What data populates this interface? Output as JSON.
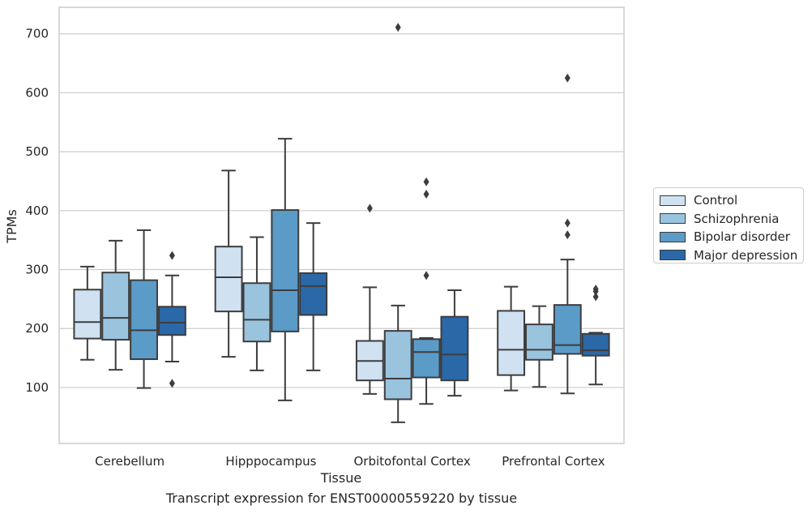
{
  "caption": "Transcript expression for ENST00000559220 by tissue",
  "chart_data": {
    "type": "boxplot",
    "xlabel": "Tissue",
    "ylabel": "TPMs",
    "ylim": [
      5,
      745
    ],
    "yticks": [
      100,
      200,
      300,
      400,
      500,
      600,
      700
    ],
    "grid": "horizontal",
    "legend_position": "right",
    "categories": [
      "Cerebellum",
      "Hipppocampus",
      "Orbitofontal Cortex",
      "Prefrontal Cortex"
    ],
    "series": [
      {
        "name": "Control",
        "color": "#d0e1f2",
        "boxes": [
          {
            "whisker_low": 147,
            "q1": 183,
            "median": 211,
            "q3": 266,
            "whisker_high": 305,
            "outliers": []
          },
          {
            "whisker_low": 152,
            "q1": 229,
            "median": 287,
            "q3": 339,
            "whisker_high": 468,
            "outliers": []
          },
          {
            "whisker_low": 89,
            "q1": 112,
            "median": 145,
            "q3": 179,
            "whisker_high": 270,
            "outliers": [
              404
            ]
          },
          {
            "whisker_low": 95,
            "q1": 121,
            "median": 164,
            "q3": 230,
            "whisker_high": 271,
            "outliers": []
          }
        ]
      },
      {
        "name": "Schizophrenia",
        "color": "#9ac3de",
        "boxes": [
          {
            "whisker_low": 130,
            "q1": 181,
            "median": 218,
            "q3": 295,
            "whisker_high": 349,
            "outliers": []
          },
          {
            "whisker_low": 129,
            "q1": 178,
            "median": 215,
            "q3": 277,
            "whisker_high": 355,
            "outliers": []
          },
          {
            "whisker_low": 41,
            "q1": 80,
            "median": 115,
            "q3": 196,
            "whisker_high": 239,
            "outliers": [
              711
            ]
          },
          {
            "whisker_low": 101,
            "q1": 147,
            "median": 164,
            "q3": 207,
            "whisker_high": 238,
            "outliers": []
          }
        ]
      },
      {
        "name": "Bipolar disorder",
        "color": "#5b9bc8",
        "boxes": [
          {
            "whisker_low": 99,
            "q1": 148,
            "median": 197,
            "q3": 282,
            "whisker_high": 367,
            "outliers": []
          },
          {
            "whisker_low": 78,
            "q1": 195,
            "median": 265,
            "q3": 401,
            "whisker_high": 522,
            "outliers": []
          },
          {
            "whisker_low": 72,
            "q1": 117,
            "median": 160,
            "q3": 182,
            "whisker_high": 184,
            "outliers": [
              449,
              428,
              290
            ]
          },
          {
            "whisker_low": 90,
            "q1": 157,
            "median": 172,
            "q3": 240,
            "whisker_high": 317,
            "outliers": [
              625,
              379,
              359
            ]
          }
        ]
      },
      {
        "name": "Major depression",
        "color": "#2a68a8",
        "boxes": [
          {
            "whisker_low": 144,
            "q1": 189,
            "median": 210,
            "q3": 237,
            "whisker_high": 290,
            "outliers": [
              324,
              107
            ]
          },
          {
            "whisker_low": 129,
            "q1": 223,
            "median": 272,
            "q3": 294,
            "whisker_high": 379,
            "outliers": []
          },
          {
            "whisker_low": 86,
            "q1": 112,
            "median": 156,
            "q3": 220,
            "whisker_high": 265,
            "outliers": []
          },
          {
            "whisker_low": 105,
            "q1": 154,
            "median": 163,
            "q3": 191,
            "whisker_high": 193,
            "outliers": [
              267,
              263,
              254
            ]
          }
        ]
      }
    ]
  }
}
